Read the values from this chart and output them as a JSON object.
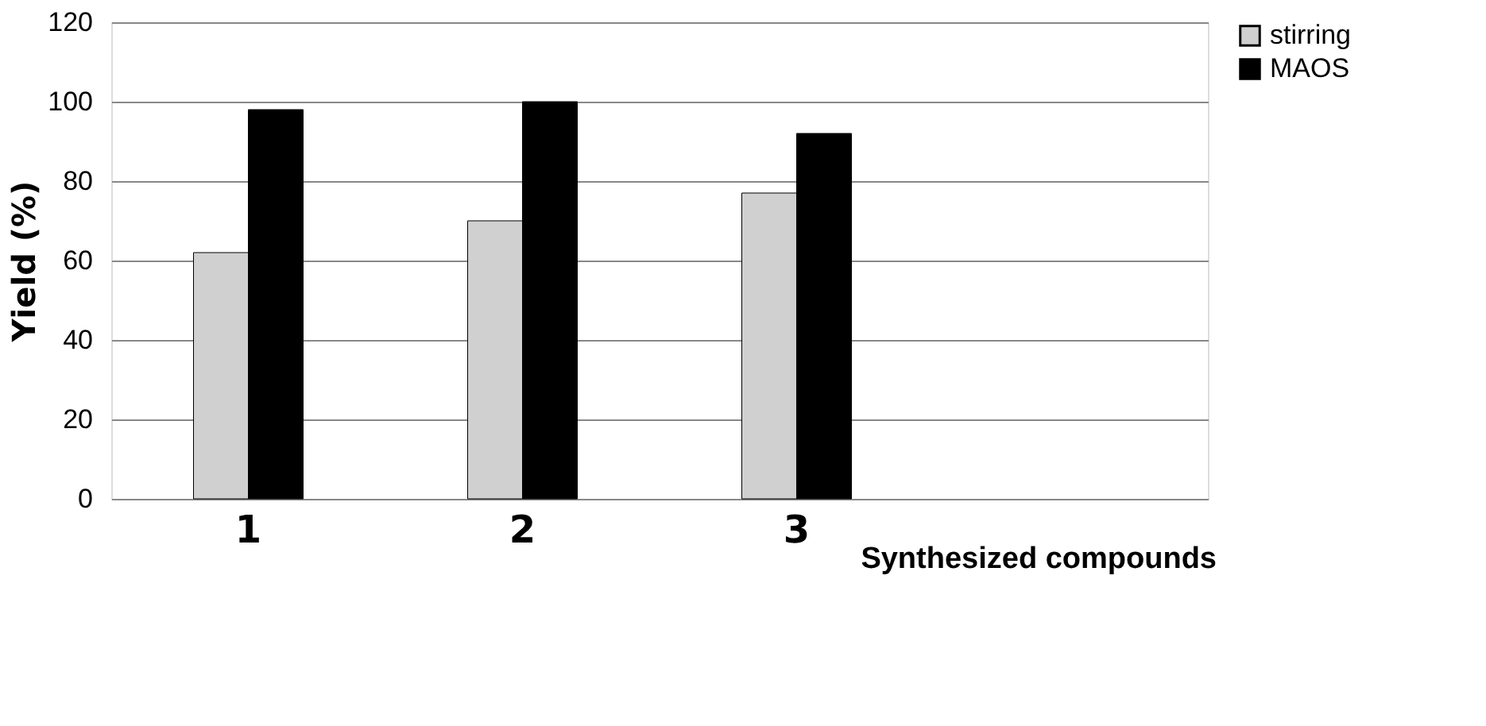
{
  "chart_data": {
    "type": "bar",
    "ylabel": "Yield (%)",
    "xlabel": "Synthesized compounds",
    "categories": [
      "1",
      "2",
      "3",
      null
    ],
    "series": [
      {
        "name": "stirring",
        "color": "#d0d0d0",
        "values": [
          62,
          70,
          77,
          null
        ]
      },
      {
        "name": "MAOS",
        "color": "#000000",
        "values": [
          98,
          100,
          92,
          null
        ]
      }
    ],
    "ylim": [
      0,
      120
    ],
    "yticks": [
      0,
      20,
      40,
      60,
      80,
      100,
      120
    ],
    "grid": "y",
    "legend": "right"
  }
}
